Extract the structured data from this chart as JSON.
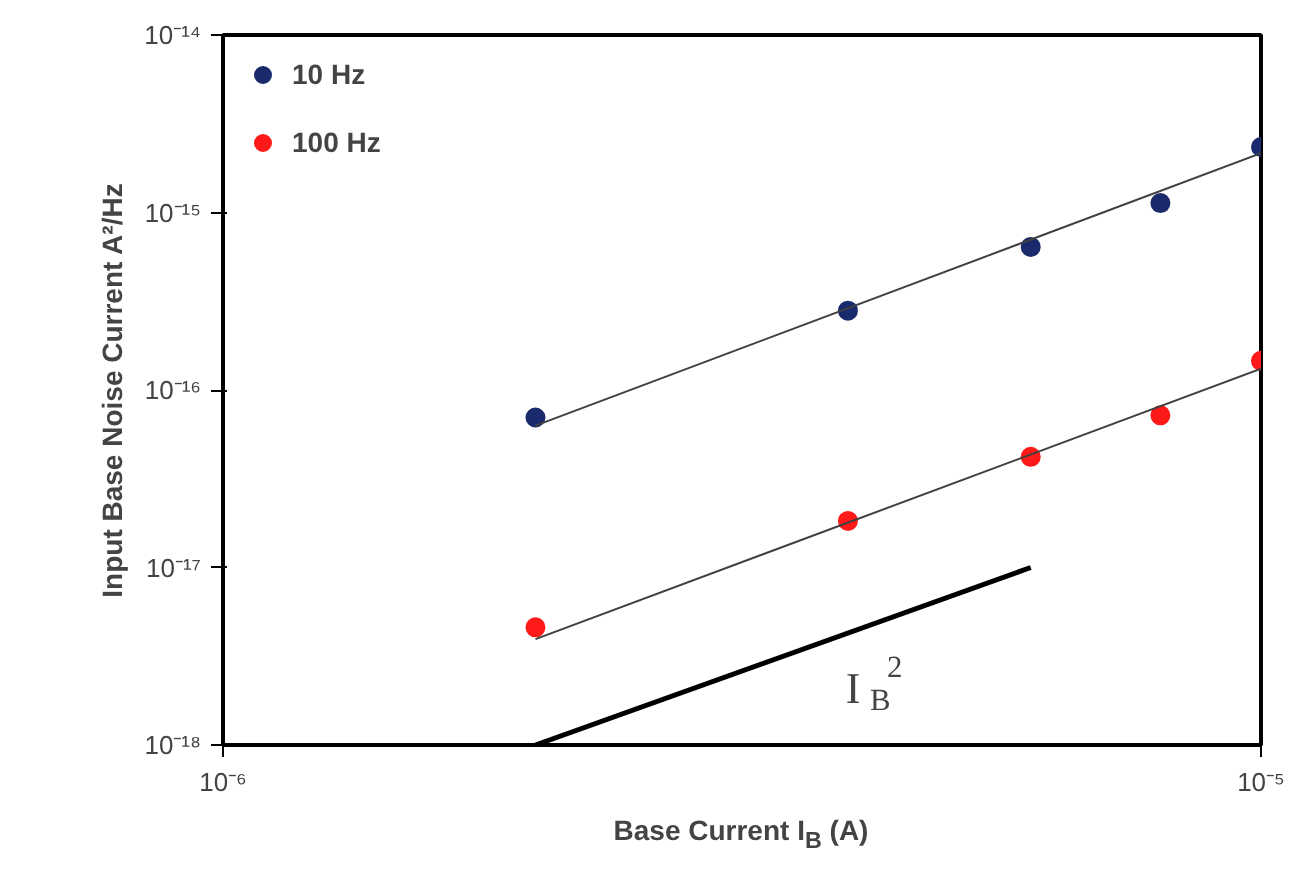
{
  "chart_data": {
    "type": "scatter",
    "xlabel": "Base Current I$_{B}$ (A)",
    "ylabel": "Input Base Noise Current A²/Hz",
    "log": "xy",
    "xlim": [
      1e-06,
      1e-05
    ],
    "ylim": [
      1e-18,
      1e-14
    ],
    "xticks": [
      {
        "value": 1e-06,
        "label": "10⁻⁶"
      },
      {
        "value": 1e-05,
        "label": "10⁻⁵"
      }
    ],
    "yticks": [
      {
        "value": 1e-18,
        "label": "10⁻¹⁸"
      },
      {
        "value": 1e-17,
        "label": "10⁻¹⁷"
      },
      {
        "value": 1e-16,
        "label": "10⁻¹⁶"
      },
      {
        "value": 1e-15,
        "label": "10⁻¹⁵"
      },
      {
        "value": 1e-14,
        "label": "10⁻¹⁴"
      }
    ],
    "grid": false,
    "legend": "top left",
    "marker": "circle",
    "series": [
      {
        "name": "10 Hz",
        "color": "#1a2a6c",
        "x": [
          2e-06,
          4e-06,
          6e-06,
          8e-06,
          1e-05
        ],
        "values": [
          7e-17,
          2.8e-16,
          6.4e-16,
          1.13e-15,
          2.34e-15
        ]
      },
      {
        "name": "100 Hz",
        "color": "#ff1a1a",
        "x": [
          2e-06,
          4e-06,
          6e-06,
          8e-06,
          1e-05
        ],
        "values": [
          4.6e-18,
          1.83e-17,
          4.2e-17,
          7.2e-17,
          1.46e-16
        ]
      },
      {
        "type": "line",
        "color": "#404040",
        "marker": "none",
        "x": [
          2e-06,
          1e-05
        ],
        "values": [
          6.3e-17,
          2.16e-15
        ]
      },
      {
        "type": "line",
        "color": "#404040",
        "marker": "none",
        "x": [
          2e-06,
          1e-05
        ],
        "values": [
          3.95e-18,
          1.32e-16
        ]
      },
      {
        "type": "line",
        "color": "#000000",
        "marker": "none",
        "x": [
          2e-06,
          6e-06
        ],
        "values": [
          1e-18,
          1e-17
        ]
      }
    ],
    "annotations": [
      "I$_{B}$$^{2}$"
    ]
  }
}
